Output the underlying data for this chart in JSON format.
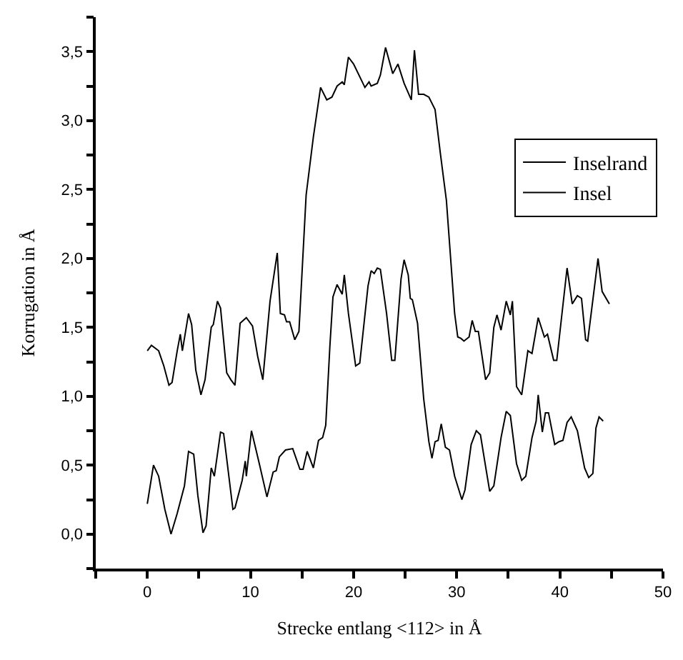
{
  "chart_data": {
    "type": "line",
    "xlabel": "Strecke entlang <112> in Å",
    "ylabel": "Korrugation in Å",
    "xlim": [
      -5,
      50
    ],
    "ylim": [
      -0.25,
      3.75
    ],
    "xticks": [
      {
        "value": -5,
        "label": null
      },
      0,
      {
        "value": 5,
        "label": null
      },
      10,
      {
        "value": 15,
        "label": null
      },
      20,
      {
        "value": 25,
        "label": null
      },
      30,
      {
        "value": 35,
        "label": null
      },
      40,
      {
        "value": 45,
        "label": null
      },
      50
    ],
    "yticks": [
      {
        "value": -0.25,
        "label": null
      },
      {
        "value": 0,
        "label": "0,0"
      },
      {
        "value": 0.25,
        "label": null
      },
      {
        "value": 0.5,
        "label": "0,5"
      },
      {
        "value": 0.75,
        "label": null
      },
      {
        "value": 1,
        "label": "1,0"
      },
      {
        "value": 1.25,
        "label": null
      },
      {
        "value": 1.5,
        "label": "1,5"
      },
      {
        "value": 1.75,
        "label": null
      },
      {
        "value": 2,
        "label": "2,0"
      },
      {
        "value": 2.25,
        "label": null
      },
      {
        "value": 2.5,
        "label": "2,5"
      },
      {
        "value": 2.75,
        "label": null
      },
      {
        "value": 3,
        "label": "3,0"
      },
      {
        "value": 3.25,
        "label": null
      },
      {
        "value": 3.5,
        "label": "3,5"
      },
      {
        "value": 3.75,
        "label": null
      }
    ],
    "legend": "top right",
    "marker": "none",
    "line_style": "solid",
    "series": [
      {
        "name": "Inselrand",
        "color": "#000000",
        "x": [
          0,
          0.4,
          1.1,
          1.6,
          2.1,
          2.4,
          2.9,
          3.2,
          3.4,
          4.0,
          4.3,
          4.7,
          5.2,
          5.6,
          6.2,
          6.4,
          6.8,
          7.1,
          7.7,
          8.1,
          8.5,
          9.0,
          9.6,
          10.2,
          10.7,
          11.2,
          11.9,
          12.6,
          12.9,
          13.3,
          13.5,
          13.8,
          14.3,
          14.7,
          15.4,
          16.1,
          16.8,
          17.4,
          17.9,
          18.4,
          18.9,
          19.1,
          19.5,
          20.0,
          21.1,
          21.5,
          21.7,
          22.3,
          22.6,
          23.1,
          23.8,
          24.3,
          24.9,
          25.6,
          25.9,
          26.3,
          26.8,
          27.3,
          27.9,
          28.4,
          29.0,
          29.4,
          29.8,
          30.1,
          30.4,
          30.7,
          31.2,
          31.5,
          31.8,
          32.1,
          32.6,
          32.8,
          33.2,
          33.6,
          33.9,
          34.3,
          34.8,
          35.2,
          35.4,
          35.8,
          36.3,
          36.9,
          37.3,
          37.9,
          38.5,
          38.8,
          39.4,
          39.7,
          40.7,
          41.2,
          41.7,
          42.1,
          42.5,
          42.7,
          43.7,
          44.1,
          44.8
        ],
        "values": [
          1.33,
          1.37,
          1.33,
          1.22,
          1.08,
          1.1,
          1.33,
          1.45,
          1.33,
          1.6,
          1.52,
          1.19,
          1.01,
          1.12,
          1.5,
          1.52,
          1.69,
          1.64,
          1.17,
          1.12,
          1.08,
          1.53,
          1.57,
          1.51,
          1.29,
          1.12,
          1.69,
          2.04,
          1.6,
          1.59,
          1.54,
          1.54,
          1.41,
          1.47,
          2.46,
          2.88,
          3.24,
          3.15,
          3.17,
          3.25,
          3.28,
          3.26,
          3.46,
          3.41,
          3.24,
          3.28,
          3.25,
          3.27,
          3.33,
          3.53,
          3.34,
          3.41,
          3.27,
          3.15,
          3.51,
          3.19,
          3.19,
          3.17,
          3.08,
          2.77,
          2.42,
          2.01,
          1.6,
          1.43,
          1.42,
          1.4,
          1.43,
          1.55,
          1.47,
          1.47,
          1.22,
          1.12,
          1.17,
          1.5,
          1.59,
          1.48,
          1.69,
          1.59,
          1.69,
          1.07,
          1.01,
          1.33,
          1.31,
          1.57,
          1.43,
          1.45,
          1.26,
          1.26,
          1.93,
          1.67,
          1.73,
          1.71,
          1.41,
          1.4,
          2.0,
          1.76,
          1.67
        ]
      },
      {
        "name": "Insel",
        "color": "#000000",
        "x": [
          0,
          0.6,
          1.1,
          1.7,
          2.3,
          2.9,
          3.6,
          4.0,
          4.5,
          4.9,
          5.4,
          5.7,
          6.2,
          6.5,
          7.1,
          7.4,
          8.3,
          8.5,
          9.2,
          9.5,
          9.6,
          10.1,
          10.8,
          11.6,
          12.2,
          12.5,
          12.8,
          13.4,
          14.1,
          14.8,
          15.1,
          15.5,
          16.1,
          16.6,
          17.0,
          17.3,
          17.7,
          18.0,
          18.4,
          18.9,
          19.1,
          19.5,
          20.2,
          20.6,
          21.4,
          21.7,
          22.0,
          22.3,
          22.6,
          23.2,
          23.7,
          24.0,
          24.6,
          24.9,
          25.3,
          25.5,
          25.7,
          26.2,
          26.8,
          27.3,
          27.6,
          27.9,
          28.2,
          28.5,
          28.9,
          29.3,
          29.8,
          30.5,
          30.8,
          31.4,
          31.9,
          32.3,
          32.8,
          33.2,
          33.6,
          34.3,
          34.8,
          35.2,
          35.8,
          36.3,
          36.7,
          37.3,
          37.7,
          37.9,
          38.3,
          38.6,
          38.9,
          39.5,
          39.9,
          40.3,
          40.7,
          41.1,
          41.7,
          42.4,
          42.8,
          43.2,
          43.5,
          43.8,
          44.2
        ],
        "values": [
          0.22,
          0.5,
          0.42,
          0.18,
          0.0,
          0.15,
          0.35,
          0.6,
          0.58,
          0.28,
          0.01,
          0.06,
          0.48,
          0.42,
          0.74,
          0.73,
          0.18,
          0.19,
          0.39,
          0.53,
          0.42,
          0.75,
          0.53,
          0.27,
          0.45,
          0.46,
          0.56,
          0.61,
          0.62,
          0.47,
          0.47,
          0.6,
          0.48,
          0.68,
          0.7,
          0.79,
          1.36,
          1.72,
          1.81,
          1.74,
          1.88,
          1.6,
          1.22,
          1.24,
          1.8,
          1.91,
          1.89,
          1.93,
          1.92,
          1.6,
          1.26,
          1.26,
          1.85,
          1.99,
          1.88,
          1.71,
          1.7,
          1.53,
          0.98,
          0.67,
          0.55,
          0.67,
          0.68,
          0.8,
          0.63,
          0.61,
          0.42,
          0.25,
          0.32,
          0.65,
          0.75,
          0.72,
          0.49,
          0.31,
          0.35,
          0.7,
          0.89,
          0.86,
          0.51,
          0.39,
          0.42,
          0.7,
          0.82,
          1.01,
          0.74,
          0.88,
          0.88,
          0.65,
          0.67,
          0.68,
          0.81,
          0.85,
          0.75,
          0.48,
          0.41,
          0.44,
          0.77,
          0.85,
          0.82
        ]
      }
    ]
  }
}
